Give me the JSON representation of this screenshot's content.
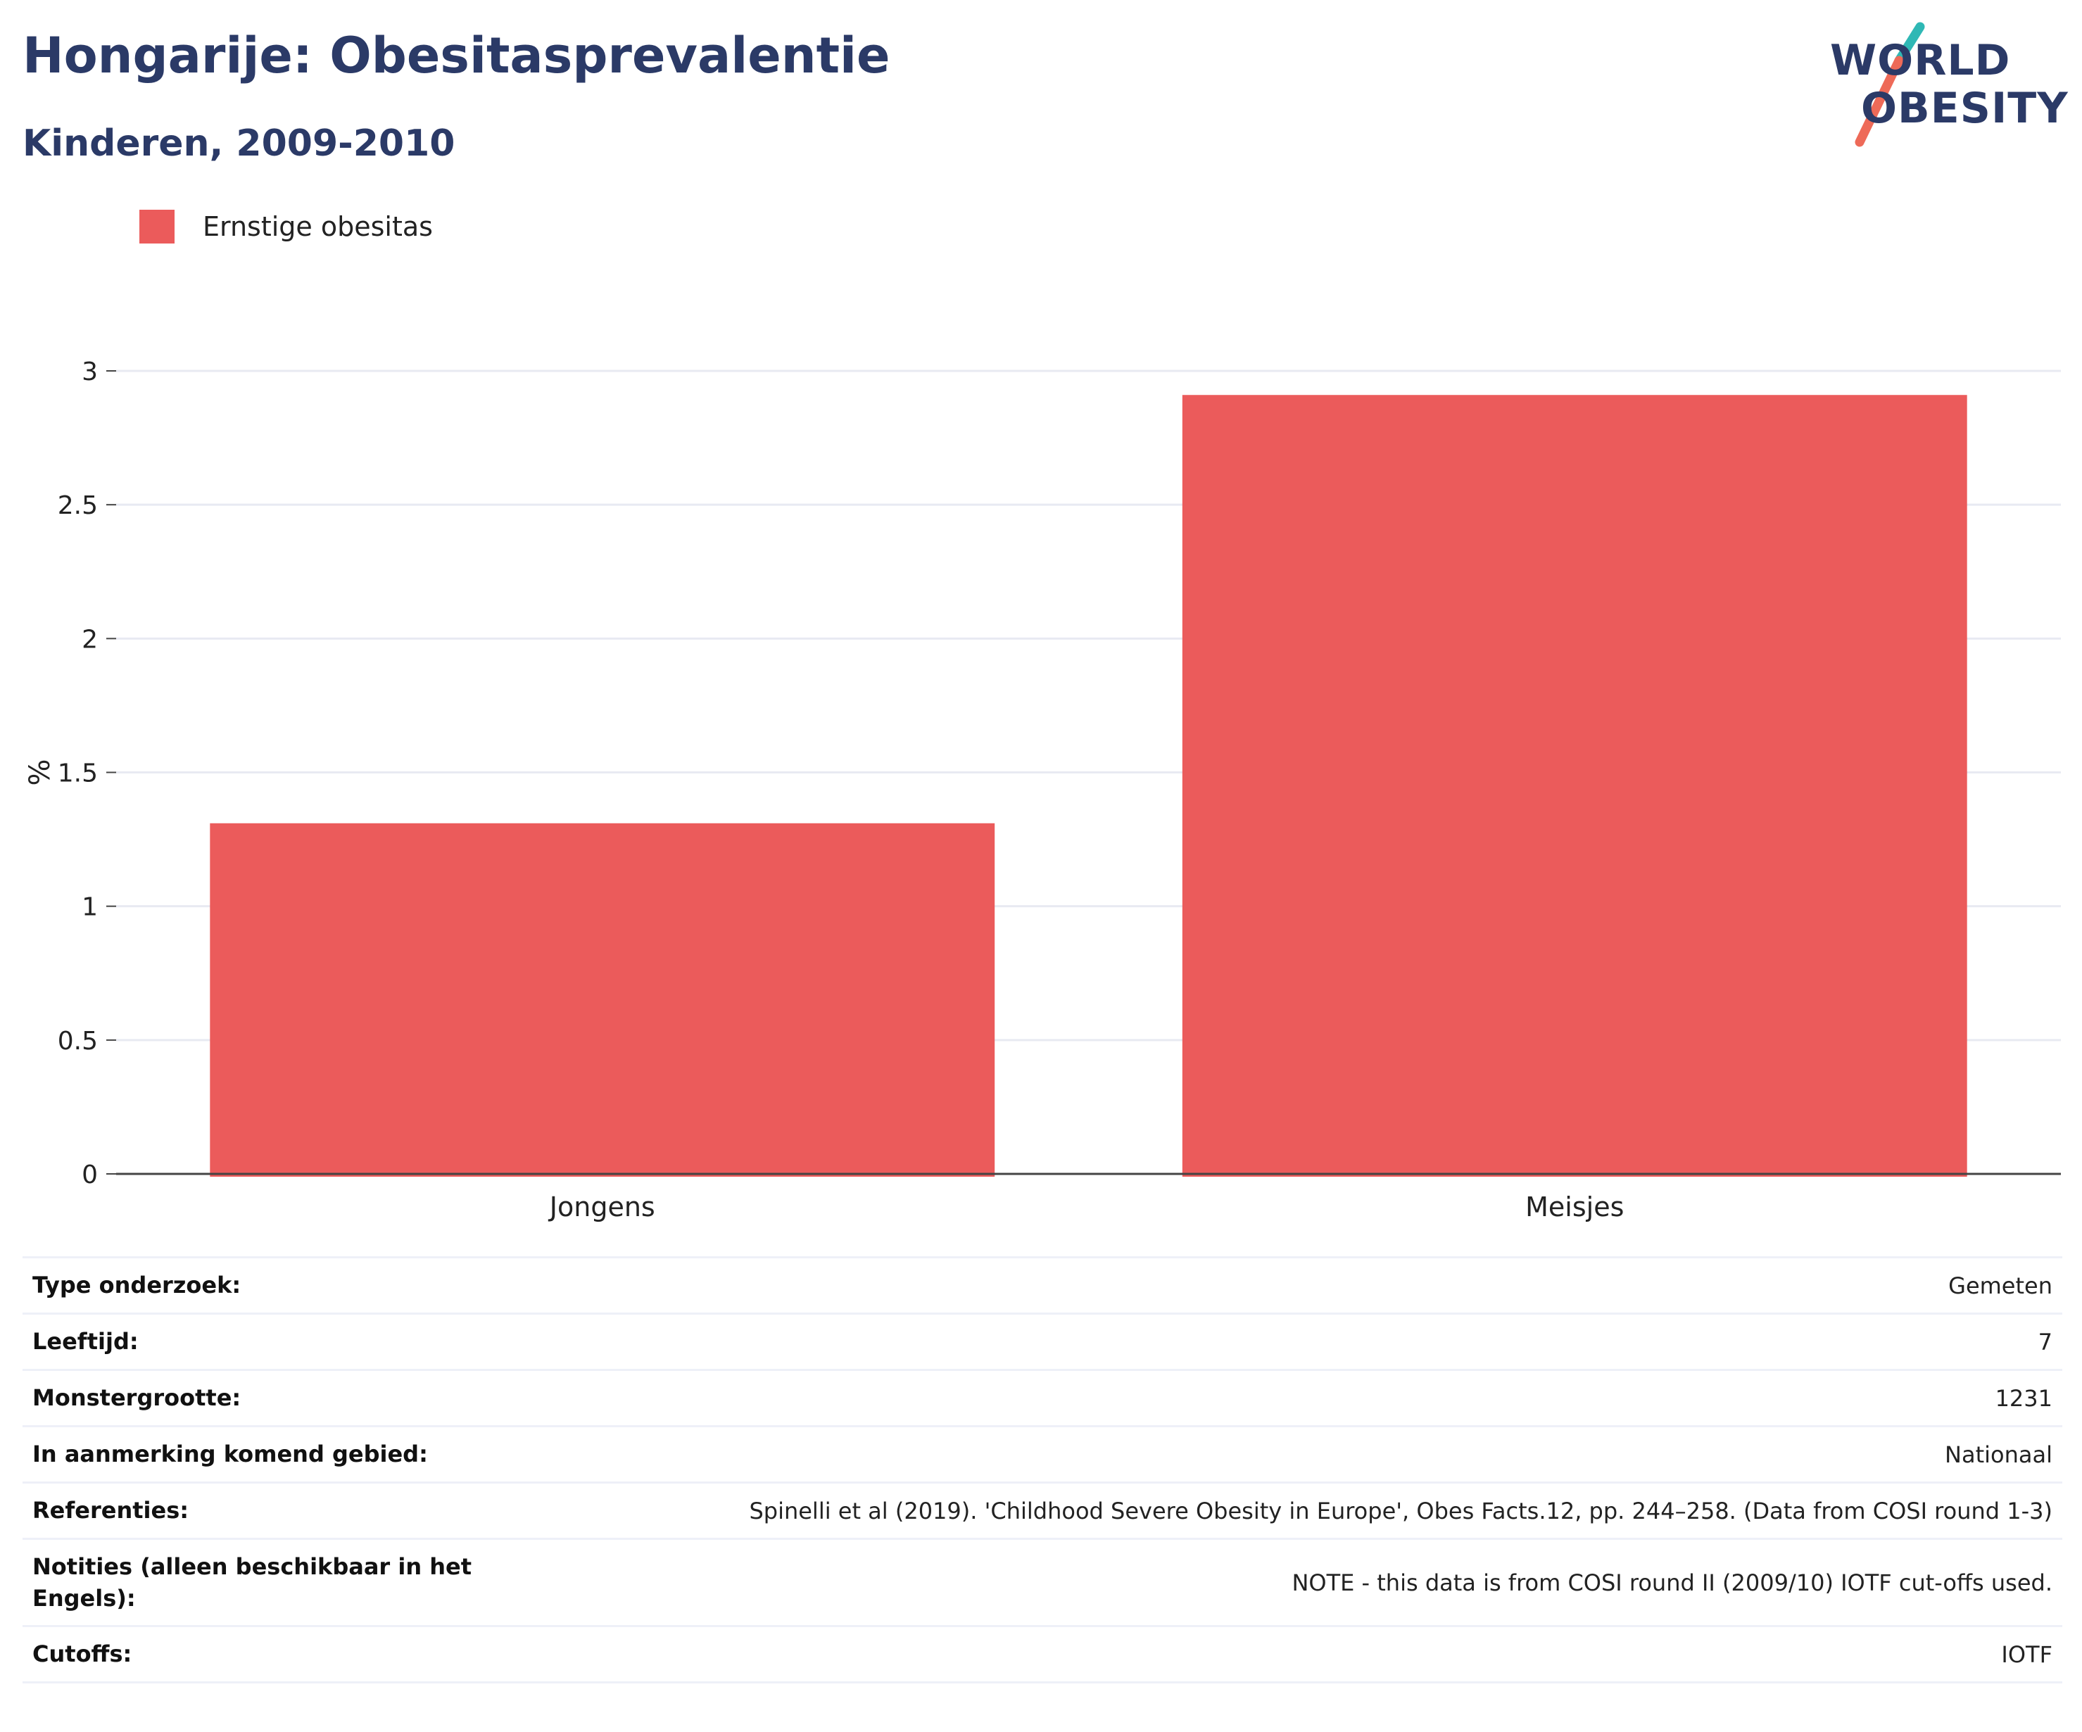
{
  "header": {
    "title": "Hongarije: Obesitasprevalentie",
    "subtitle": "Kinderen, 2009-2010"
  },
  "logo": {
    "line1": "WORLD",
    "line2": "OBESITY"
  },
  "chart_data": {
    "type": "bar",
    "categories": [
      "Jongens",
      "Meisjes"
    ],
    "series": [
      {
        "name": "Ernstige obesitas",
        "values": [
          1.31,
          2.91
        ],
        "color": "#eb5b5b"
      }
    ],
    "ylabel": "%",
    "ylim": [
      0,
      3
    ],
    "yticks": [
      0,
      0.5,
      1,
      1.5,
      2,
      2.5,
      3
    ],
    "grid": true,
    "legend": "top-left"
  },
  "info": [
    {
      "label": "Type onderzoek:",
      "value": "Gemeten"
    },
    {
      "label": "Leeftijd:",
      "value": "7"
    },
    {
      "label": "Monstergrootte:",
      "value": "1231"
    },
    {
      "label": "In aanmerking komend gebied:",
      "value": "Nationaal"
    },
    {
      "label": "Referenties:",
      "value": "Spinelli et al (2019). 'Childhood Severe Obesity in Europe', Obes Facts.12, pp. 244–258. (Data from COSI round 1-3)"
    },
    {
      "label": "Notities (alleen beschikbaar in het Engels):",
      "value": "NOTE - this data is from COSI round II (2009/10) IOTF cut-offs used."
    },
    {
      "label": "Cutoffs:",
      "value": "IOTF"
    }
  ]
}
